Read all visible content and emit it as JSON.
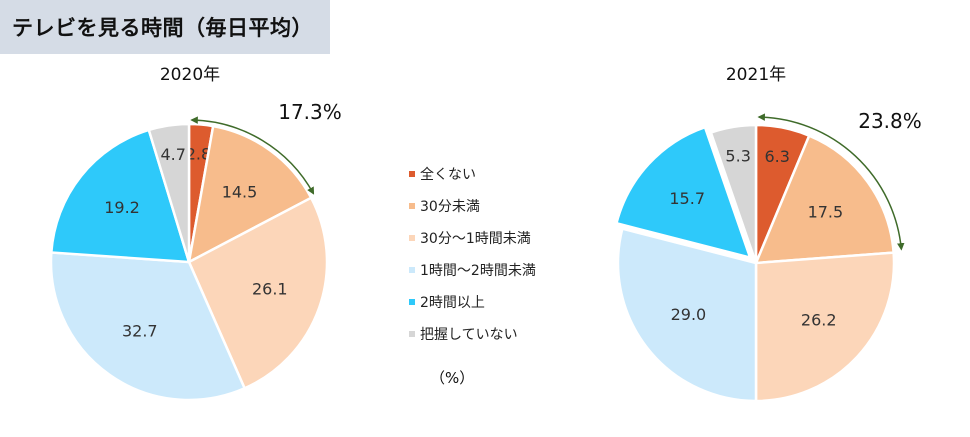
{
  "page_title": "テレビを見る時間（毎日平均）",
  "unit_note": "（%）",
  "legend": [
    {
      "label": "全くない",
      "color": "#dd5b2e"
    },
    {
      "label": "30分未満",
      "color": "#f7bc8c"
    },
    {
      "label": "30分～1時間未満",
      "color": "#fcd6b9"
    },
    {
      "label": "1時間～2時間未満",
      "color": "#cce9fb"
    },
    {
      "label": "2時間以上",
      "color": "#2ec9fa"
    },
    {
      "label": "把握していない",
      "color": "#d6d6d6"
    }
  ],
  "chart_data": [
    {
      "type": "pie",
      "title": "2020年",
      "categories": [
        "全くない",
        "30分未満",
        "30分～1時間未満",
        "1時間～2時間未満",
        "2時間以上",
        "把握していない"
      ],
      "values": [
        2.8,
        14.5,
        26.1,
        32.7,
        19.2,
        4.7
      ],
      "value_labels": [
        "2.8",
        "14.5",
        "26.1",
        "32.7",
        "19.2",
        "4.7"
      ],
      "annotation": "17.3%"
    },
    {
      "type": "pie",
      "title": "2021年",
      "categories": [
        "全くない",
        "30分未満",
        "30分～1時間未満",
        "1時間～2時間未満",
        "2時間以上",
        "把握していない"
      ],
      "values": [
        6.3,
        17.5,
        26.2,
        29.0,
        15.7,
        5.3
      ],
      "value_labels": [
        "6.3",
        "17.5",
        "26.2",
        "29.0",
        "15.7",
        "5.3"
      ],
      "annotation": "23.8%",
      "exploded": "2時間以上"
    }
  ]
}
